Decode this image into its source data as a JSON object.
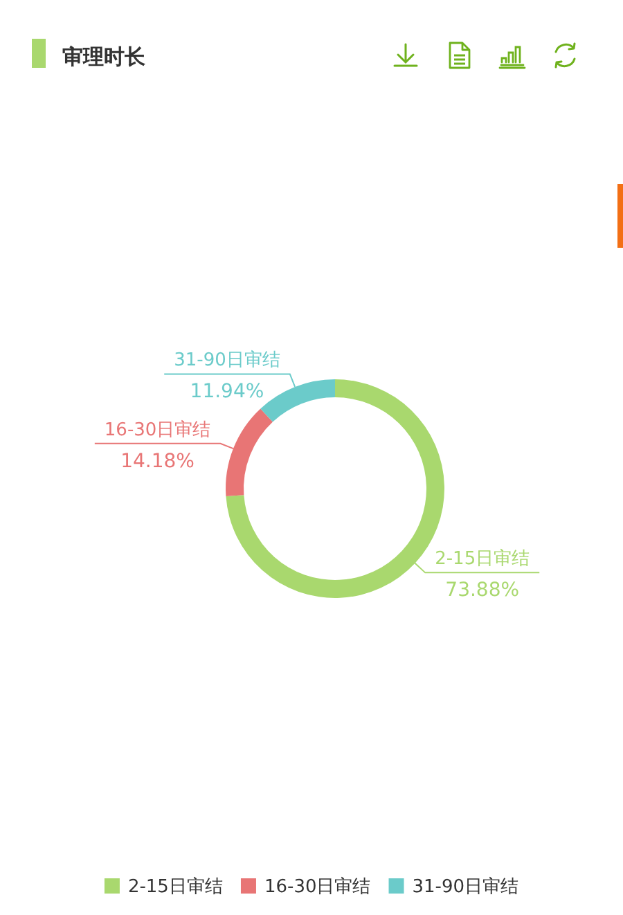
{
  "chart_data": {
    "type": "donut",
    "title": "审理时长",
    "categories": [
      "2-15日审结",
      "16-30日审结",
      "31-90日审结"
    ],
    "values": [
      73.88,
      14.18,
      11.94
    ],
    "value_labels": [
      "73.88%",
      "14.18%",
      "11.94%"
    ],
    "colors": [
      "#a9d86e",
      "#e87575",
      "#6bcbca"
    ],
    "legend": "bottom"
  }
}
